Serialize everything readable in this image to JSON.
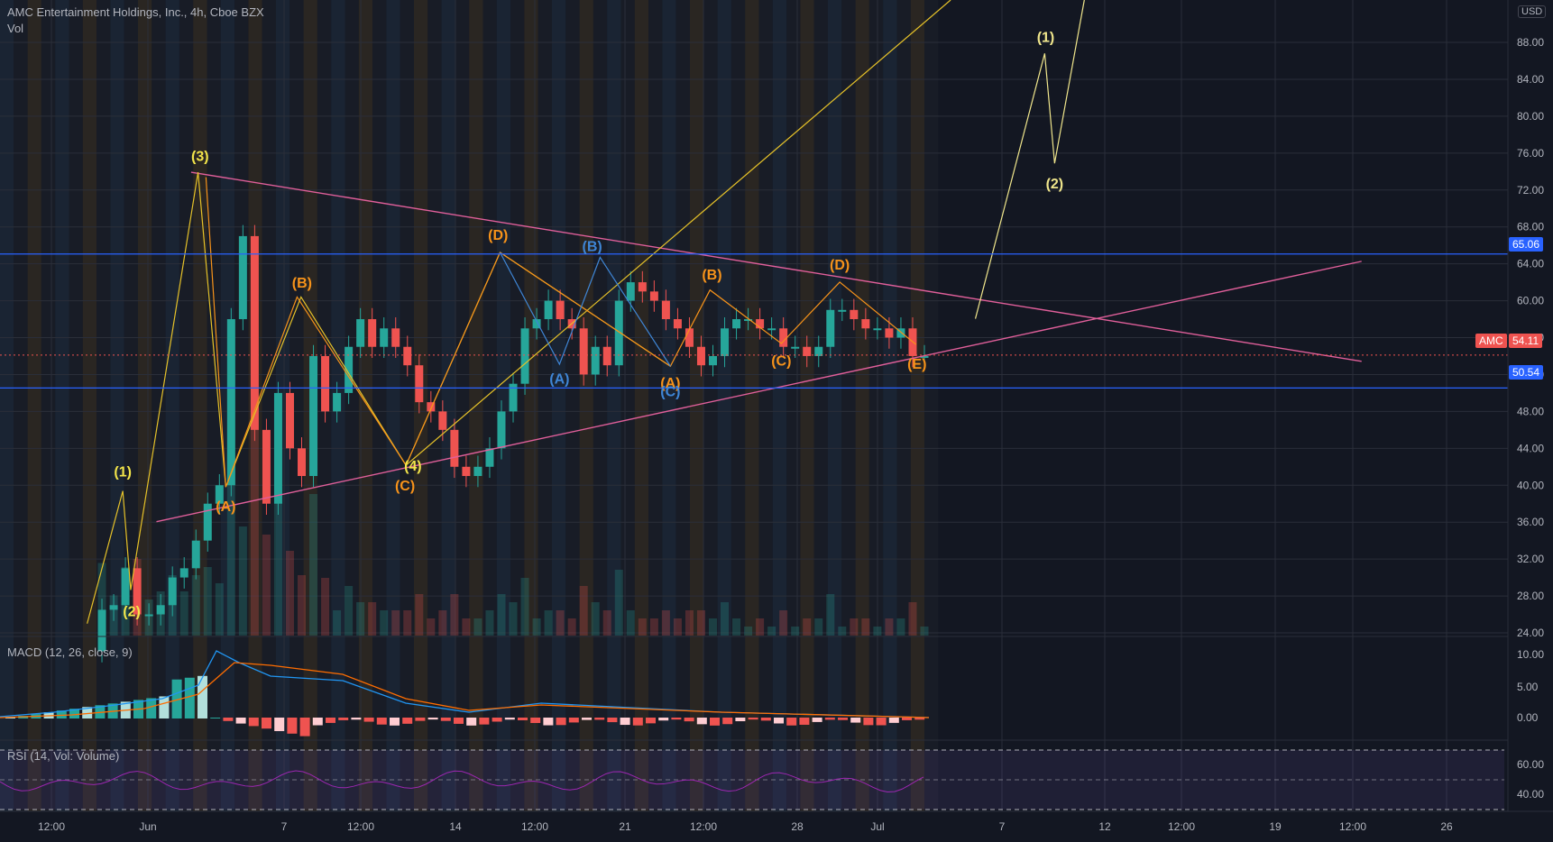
{
  "header": {
    "title": "AMC Entertainment Holdings, Inc., 4h, Cboe BZX",
    "volume_label": "Vol"
  },
  "indicators": {
    "macd_label": "MACD (12, 26, close, 9)",
    "rsi_label": "RSI (14, Vol: Volume)"
  },
  "price_axis": {
    "currency": "USD",
    "ticks": [
      "88.00",
      "84.00",
      "80.00",
      "76.00",
      "72.00",
      "68.00",
      "64.00",
      "60.00",
      "56.00",
      "52.00",
      "48.00",
      "44.00",
      "40.00",
      "36.00",
      "32.00",
      "28.00",
      "24.00"
    ],
    "macd_ticks": [
      "10.00",
      "5.00",
      "0.00"
    ],
    "rsi_ticks": [
      "60.00",
      "40.00"
    ]
  },
  "price_tags": {
    "symbol": "AMC",
    "last_price": "54.11",
    "resistance": "65.06",
    "support": "50.54"
  },
  "time_axis": {
    "ticks": [
      "12:00",
      "Jun",
      "7",
      "12:00",
      "14",
      "12:00",
      "21",
      "12:00",
      "28",
      "Jul",
      "7",
      "12",
      "12:00",
      "19",
      "12:00",
      "26"
    ]
  },
  "wave_labels": [
    {
      "text": "(1)",
      "color": "#f2e44a"
    },
    {
      "text": "(2)",
      "color": "#f2e44a"
    },
    {
      "text": "(3)",
      "color": "#f2e44a"
    },
    {
      "text": "(4)",
      "color": "#f2e44a"
    },
    {
      "text": "(A)",
      "color": "#f7931a"
    },
    {
      "text": "(B)",
      "color": "#f7931a"
    },
    {
      "text": "(C)",
      "color": "#f7931a"
    },
    {
      "text": "(D)",
      "color": "#f7931a"
    },
    {
      "text": "(B)",
      "color": "#3f86d6"
    },
    {
      "text": "(A)",
      "color": "#3f86d6"
    },
    {
      "text": "(A)",
      "color": "#f7931a"
    },
    {
      "text": "(C)",
      "color": "#3f86d6"
    },
    {
      "text": "(B)",
      "color": "#f7931a"
    },
    {
      "text": "(C)",
      "color": "#f7931a"
    },
    {
      "text": "(D)",
      "color": "#f7931a"
    },
    {
      "text": "(E)",
      "color": "#f7931a"
    },
    {
      "text": "(1)",
      "color": "#f0e68c"
    },
    {
      "text": "(2)",
      "color": "#f0e68c"
    }
  ],
  "colors": {
    "background": "#131722",
    "up": "#26a69a",
    "down": "#ef5350",
    "hline": "#2962ff",
    "trendline": "#e05f9a",
    "macd": "#2196f3",
    "signal": "#ff6d00",
    "rsi": "#9c27b0"
  },
  "chart_data": {
    "type": "candlestick",
    "title": "AMC Entertainment Holdings, Inc., 4h, Cboe BZX",
    "xlabel": "",
    "ylabel": "USD",
    "ylim": [
      20,
      92
    ],
    "x_ticks": [
      "12:00",
      "Jun",
      "7",
      "12:00",
      "14",
      "12:00",
      "21",
      "12:00",
      "28",
      "Jul",
      "7",
      "12",
      "12:00",
      "19",
      "12:00",
      "26"
    ],
    "last_price": 54.11,
    "horizontal_levels": [
      65.06,
      50.54
    ],
    "approx_closes": [
      22,
      26.5,
      27,
      31,
      26,
      26,
      27,
      30,
      31,
      34,
      38,
      40,
      58,
      67,
      46,
      38,
      50,
      44,
      41,
      54,
      48,
      50,
      55,
      58,
      55,
      57,
      55,
      53,
      49,
      48,
      46,
      42,
      41,
      42,
      44,
      48,
      51,
      57,
      58,
      60,
      58,
      57,
      52,
      55,
      53,
      60,
      62,
      61,
      60,
      58,
      57,
      55,
      53,
      54,
      57,
      58,
      58,
      57,
      57,
      55,
      55,
      54,
      55,
      59,
      59,
      58,
      57,
      57,
      56,
      57,
      54,
      54
    ],
    "elliott_waves": {
      "impulse": [
        [
          "(1)",
          37
        ],
        [
          "(2)",
          25
        ],
        [
          "(3)",
          73
        ],
        [
          "(4)",
          40
        ]
      ],
      "triangle": [
        [
          "(A)",
          37.5
        ],
        [
          "(B)",
          59
        ],
        [
          "(C)",
          40
        ],
        [
          "(D)",
          64
        ],
        [
          "(E)",
          51.5
        ]
      ],
      "inner_triangle": [
        [
          "(A)",
          51.5
        ],
        [
          "(B)",
          60
        ],
        [
          "(C)",
          53.5
        ],
        [
          "(D)",
          61
        ],
        [
          "(E)",
          53
        ]
      ],
      "projection": [
        [
          "(1)",
          86.5
        ],
        [
          "(2)",
          74
        ]
      ]
    },
    "macd": {
      "range": [
        -3,
        11
      ],
      "peak": 10.8,
      "signal_peak": 8.5,
      "latest": 0.1
    },
    "rsi": {
      "range": [
        30,
        70
      ],
      "upper_band": 70,
      "mid": 50,
      "lower_band": 30
    }
  }
}
